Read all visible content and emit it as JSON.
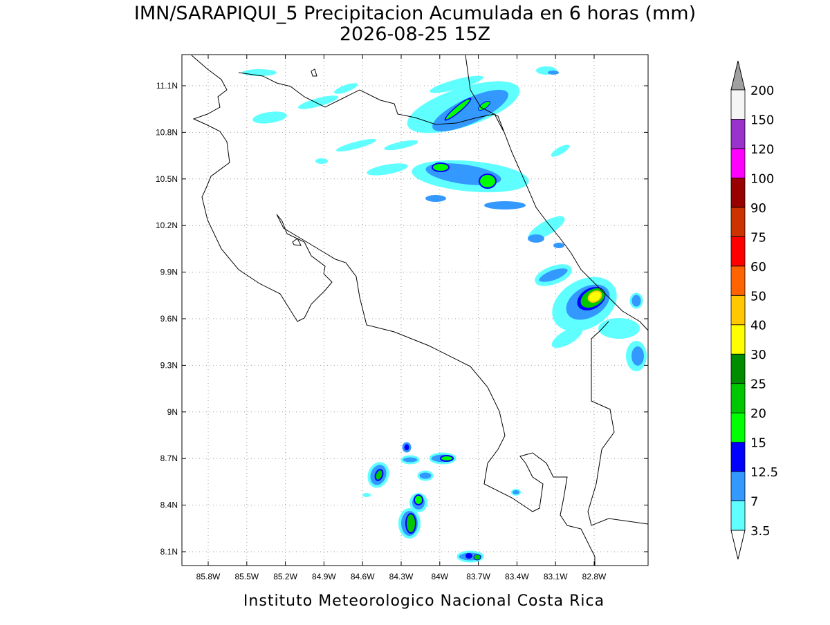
{
  "header": {
    "title": "IMN/SARAPIQUI_5 Precipitacion Acumulada en 6 horas (mm)",
    "subtitle": "2026-08-25 15Z"
  },
  "map": {
    "lat_labels": [
      "11.1N",
      "10.8N",
      "10.5N",
      "10.2N",
      "9.9N",
      "9.6N",
      "9.3N",
      "9N",
      "8.7N",
      "8.4N",
      "8.1N"
    ],
    "lon_labels": [
      "85.8W",
      "85.5W",
      "85.2W",
      "84.9W",
      "84.6W",
      "84.3W",
      "84W",
      "83.7W",
      "83.4W",
      "83.1W",
      "82.8W"
    ]
  },
  "colorbar": {
    "labels": [
      "3.5",
      "7",
      "12.5",
      "15",
      "20",
      "25",
      "30",
      "40",
      "50",
      "60",
      "75",
      "90",
      "100",
      "120",
      "150",
      "200"
    ]
  },
  "footer": "Instituto Meteorologico Nacional Costa Rica"
}
